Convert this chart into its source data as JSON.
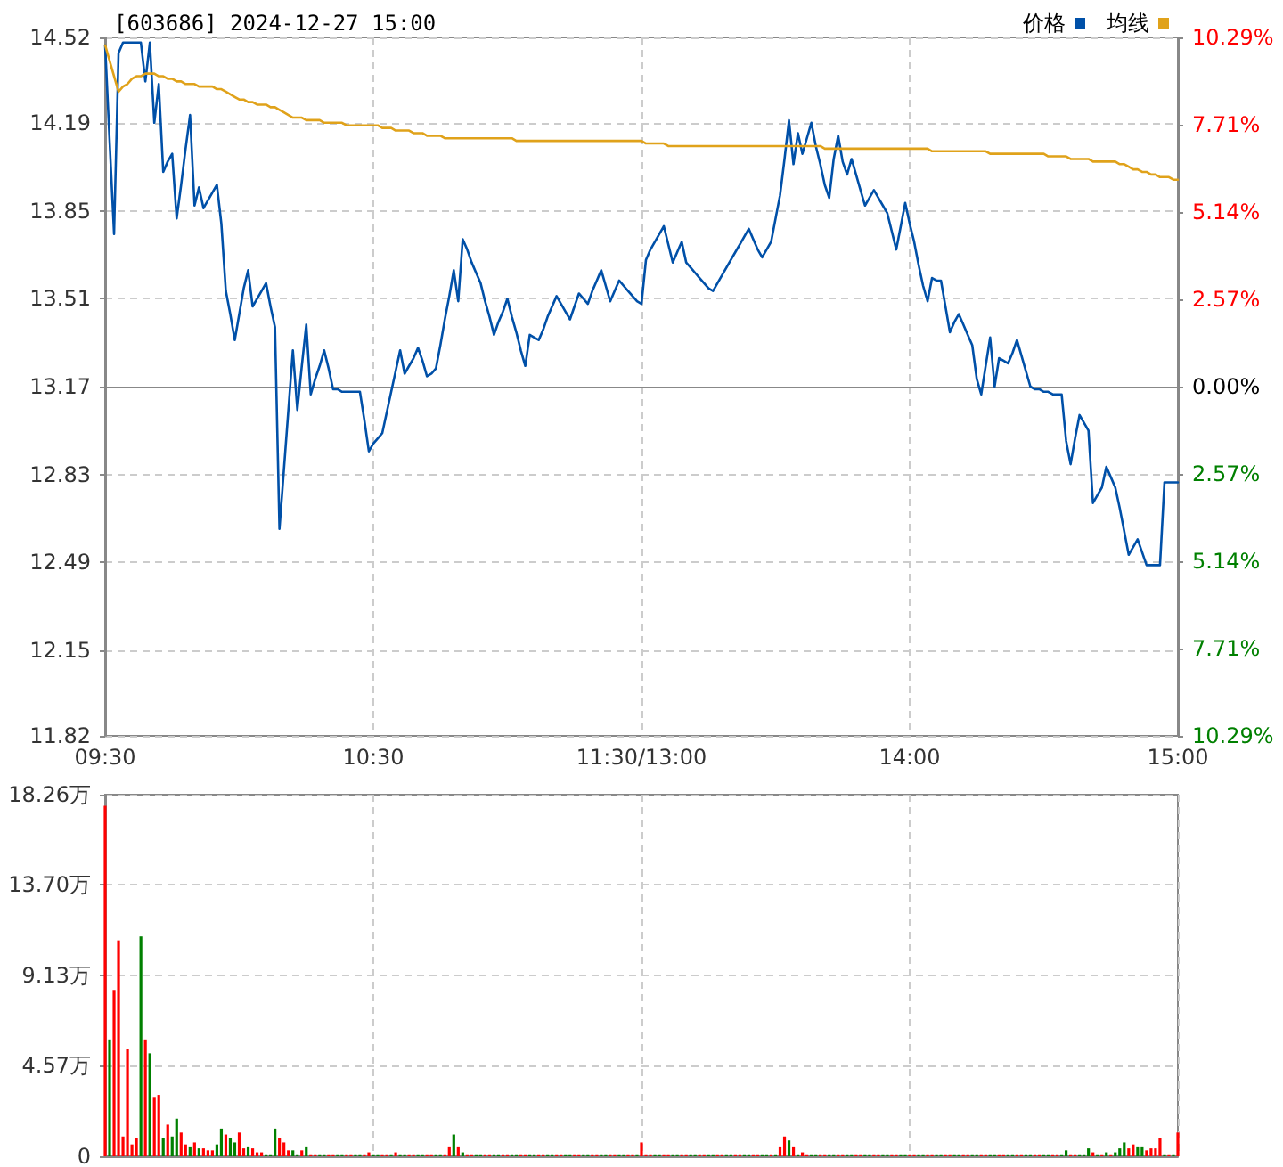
{
  "chart_data": [
    {
      "type": "line",
      "title": "[603686] 2024-12-27 15:00",
      "categories": [
        "09:30",
        null,
        null,
        null,
        null,
        null,
        null,
        null,
        null,
        null,
        null,
        null,
        null,
        null,
        null,
        null,
        null,
        null,
        null,
        null,
        null,
        null,
        null,
        null,
        null,
        null,
        null,
        null,
        null,
        null,
        null,
        null,
        null,
        null,
        null,
        null,
        null,
        null,
        null,
        null,
        null,
        null,
        null,
        null,
        null,
        null,
        null,
        null,
        null,
        null,
        null,
        null,
        null,
        null,
        null,
        null,
        null,
        null,
        null,
        null,
        "10:30",
        null,
        null,
        null,
        null,
        null,
        null,
        null,
        null,
        null,
        null,
        null,
        null,
        null,
        null,
        null,
        null,
        null,
        null,
        null,
        null,
        null,
        null,
        null,
        null,
        null,
        null,
        null,
        null,
        null,
        null,
        null,
        null,
        null,
        null,
        null,
        null,
        null,
        null,
        null,
        null,
        null,
        null,
        null,
        null,
        null,
        null,
        null,
        null,
        null,
        null,
        null,
        null,
        null,
        null,
        null,
        null,
        null,
        null,
        null,
        "11:30/13:00",
        null,
        null,
        null,
        null,
        null,
        null,
        null,
        null,
        null,
        null,
        null,
        null,
        null,
        null,
        null,
        null,
        null,
        null,
        null,
        null,
        null,
        null,
        null,
        null,
        null,
        null,
        null,
        null,
        null,
        null,
        null,
        null,
        null,
        null,
        null,
        null,
        null,
        null,
        null,
        null,
        null,
        null,
        null,
        null,
        null,
        null,
        null,
        null,
        null,
        null,
        null,
        null,
        null,
        null,
        null,
        null,
        null,
        null,
        null,
        "14:00",
        null,
        null,
        null,
        null,
        null,
        null,
        null,
        null,
        null,
        null,
        null,
        null,
        null,
        null,
        null,
        null,
        null,
        null,
        null,
        null,
        null,
        null,
        null,
        null,
        null,
        null,
        null,
        null,
        null,
        null,
        null,
        null,
        null,
        null,
        null,
        null,
        null,
        null,
        null,
        null,
        null,
        null,
        null,
        null,
        null,
        null,
        null,
        null,
        null,
        null,
        null,
        null,
        null,
        null,
        null,
        null,
        null,
        null,
        null,
        "15:00"
      ],
      "ylim": [
        11.82,
        14.52
      ],
      "yticks": [
        11.82,
        12.15,
        12.49,
        12.83,
        13.17,
        13.51,
        13.85,
        14.19,
        14.52
      ],
      "y2lim": [
        -10.29,
        10.29
      ],
      "y2ticks": [
        {
          "value": -10.29,
          "label": "10.29%"
        },
        {
          "value": -7.71,
          "label": "7.71%"
        },
        {
          "value": -5.14,
          "label": "5.14%"
        },
        {
          "value": -2.57,
          "label": "2.57%"
        },
        {
          "value": 0,
          "label": "0.00%"
        },
        {
          "value": 2.57,
          "label": "2.57%"
        },
        {
          "value": 5.14,
          "label": "5.14%"
        },
        {
          "value": 7.71,
          "label": "7.71%"
        },
        {
          "value": 10.29,
          "label": "10.29%"
        }
      ],
      "grid": true,
      "legend": "top right",
      "series": [
        {
          "name": "价格",
          "color": "#0050a8",
          "values": [
            14.49,
            14.12,
            13.76,
            14.46,
            14.5,
            14.5,
            14.5,
            14.5,
            14.5,
            14.35,
            14.5,
            14.19,
            14.34,
            14.0,
            14.04,
            14.07,
            13.82,
            13.95,
            14.09,
            14.22,
            13.87,
            13.94,
            13.86,
            13.89,
            13.92,
            13.95,
            13.8,
            13.54,
            13.45,
            13.35,
            13.45,
            13.55,
            13.62,
            13.48,
            13.51,
            13.54,
            13.57,
            13.48,
            13.4,
            12.62,
            12.85,
            13.08,
            13.31,
            13.08,
            13.25,
            13.41,
            13.14,
            13.2,
            13.25,
            13.31,
            13.24,
            13.16,
            13.16,
            13.15,
            13.15,
            13.15,
            13.15,
            13.15,
            13.04,
            12.92,
            12.95,
            12.97,
            12.99,
            13.07,
            13.15,
            13.23,
            13.31,
            13.22,
            13.25,
            13.28,
            13.32,
            13.27,
            13.21,
            13.22,
            13.24,
            13.33,
            13.43,
            13.52,
            13.62,
            13.5,
            13.74,
            13.7,
            13.65,
            13.61,
            13.57,
            13.5,
            13.44,
            13.37,
            13.42,
            13.46,
            13.51,
            13.44,
            13.38,
            13.31,
            13.25,
            13.37,
            13.36,
            13.35,
            13.39,
            13.44,
            13.48,
            13.52,
            13.49,
            13.46,
            13.43,
            13.48,
            13.53,
            13.51,
            13.49,
            13.54,
            13.58,
            13.62,
            13.56,
            13.5,
            13.54,
            13.58,
            13.56,
            13.54,
            13.52,
            13.5,
            13.49,
            13.66,
            13.7,
            13.73,
            13.76,
            13.79,
            13.72,
            13.65,
            13.69,
            13.73,
            13.65,
            13.63,
            13.61,
            13.59,
            13.57,
            13.55,
            13.54,
            13.57,
            13.6,
            13.63,
            13.66,
            13.69,
            13.72,
            13.75,
            13.78,
            13.74,
            13.7,
            13.67,
            13.7,
            13.73,
            13.82,
            13.91,
            14.05,
            14.2,
            14.03,
            14.15,
            14.07,
            14.13,
            14.19,
            14.1,
            14.03,
            13.95,
            13.9,
            14.05,
            14.14,
            14.04,
            13.99,
            14.05,
            13.99,
            13.93,
            13.87,
            13.9,
            13.93,
            13.9,
            13.87,
            13.84,
            13.77,
            13.7,
            13.79,
            13.88,
            13.8,
            13.73,
            13.64,
            13.56,
            13.5,
            13.59,
            13.58,
            13.58,
            13.48,
            13.38,
            13.42,
            13.45,
            13.41,
            13.37,
            13.33,
            13.2,
            13.14,
            13.25,
            13.36,
            13.17,
            13.28,
            13.27,
            13.26,
            13.3,
            13.35,
            13.29,
            13.23,
            13.17,
            13.16,
            13.16,
            13.15,
            13.15,
            13.14,
            13.14,
            13.14,
            12.96,
            12.87,
            12.97,
            13.06,
            13.03,
            13.0,
            12.72,
            12.75,
            12.78,
            12.86,
            12.82,
            12.78,
            12.7,
            12.61,
            12.52,
            12.55,
            12.58,
            12.53,
            12.48,
            12.48,
            12.48,
            12.48,
            12.8,
            12.8,
            12.8,
            12.8
          ]
        },
        {
          "name": "均线",
          "color": "#e0a21a",
          "values": [
            14.49,
            14.43,
            14.37,
            14.31,
            14.33,
            14.34,
            14.36,
            14.37,
            14.37,
            14.38,
            14.38,
            14.38,
            14.37,
            14.37,
            14.36,
            14.36,
            14.35,
            14.35,
            14.34,
            14.34,
            14.34,
            14.33,
            14.33,
            14.33,
            14.33,
            14.32,
            14.32,
            14.31,
            14.3,
            14.29,
            14.28,
            14.28,
            14.27,
            14.27,
            14.26,
            14.26,
            14.26,
            14.25,
            14.25,
            14.24,
            14.23,
            14.22,
            14.21,
            14.21,
            14.21,
            14.2,
            14.2,
            14.2,
            14.2,
            14.19,
            14.19,
            14.19,
            14.19,
            14.19,
            14.18,
            14.18,
            14.18,
            14.18,
            14.18,
            14.18,
            14.18,
            14.18,
            14.17,
            14.17,
            14.17,
            14.16,
            14.16,
            14.16,
            14.16,
            14.15,
            14.15,
            14.15,
            14.14,
            14.14,
            14.14,
            14.14,
            14.13,
            14.13,
            14.13,
            14.13,
            14.13,
            14.13,
            14.13,
            14.13,
            14.13,
            14.13,
            14.13,
            14.13,
            14.13,
            14.13,
            14.13,
            14.13,
            14.12,
            14.12,
            14.12,
            14.12,
            14.12,
            14.12,
            14.12,
            14.12,
            14.12,
            14.12,
            14.12,
            14.12,
            14.12,
            14.12,
            14.12,
            14.12,
            14.12,
            14.12,
            14.12,
            14.12,
            14.12,
            14.12,
            14.12,
            14.12,
            14.12,
            14.12,
            14.12,
            14.12,
            14.12,
            14.11,
            14.11,
            14.11,
            14.11,
            14.11,
            14.1,
            14.1,
            14.1,
            14.1,
            14.1,
            14.1,
            14.1,
            14.1,
            14.1,
            14.1,
            14.1,
            14.1,
            14.1,
            14.1,
            14.1,
            14.1,
            14.1,
            14.1,
            14.1,
            14.1,
            14.1,
            14.1,
            14.1,
            14.1,
            14.1,
            14.1,
            14.1,
            14.1,
            14.1,
            14.1,
            14.1,
            14.1,
            14.1,
            14.1,
            14.1,
            14.09,
            14.09,
            14.09,
            14.09,
            14.09,
            14.09,
            14.09,
            14.09,
            14.09,
            14.09,
            14.09,
            14.09,
            14.09,
            14.09,
            14.09,
            14.09,
            14.09,
            14.09,
            14.09,
            14.09,
            14.09,
            14.09,
            14.09,
            14.09,
            14.08,
            14.08,
            14.08,
            14.08,
            14.08,
            14.08,
            14.08,
            14.08,
            14.08,
            14.08,
            14.08,
            14.08,
            14.08,
            14.07,
            14.07,
            14.07,
            14.07,
            14.07,
            14.07,
            14.07,
            14.07,
            14.07,
            14.07,
            14.07,
            14.07,
            14.07,
            14.06,
            14.06,
            14.06,
            14.06,
            14.06,
            14.05,
            14.05,
            14.05,
            14.05,
            14.05,
            14.04,
            14.04,
            14.04,
            14.04,
            14.04,
            14.04,
            14.03,
            14.03,
            14.02,
            14.01,
            14.01,
            14.0,
            14.0,
            13.99,
            13.99,
            13.98,
            13.98,
            13.98,
            13.97,
            13.97
          ]
        }
      ]
    },
    {
      "type": "bar",
      "tick_labels": "y",
      "categories": [
        null,
        null,
        null,
        null,
        null,
        null,
        null,
        null,
        null,
        null,
        null,
        null,
        null,
        null,
        null,
        null,
        null,
        null,
        null,
        null,
        null,
        null,
        null,
        null,
        null,
        null,
        null,
        null,
        null,
        null,
        null,
        null,
        null,
        null,
        null,
        null,
        null,
        null,
        null,
        null,
        null,
        null,
        null,
        null,
        null,
        null,
        null,
        null,
        null,
        null,
        null,
        null,
        null,
        null,
        null,
        null,
        null,
        null,
        null,
        null,
        null,
        null,
        null,
        null,
        null,
        null,
        null,
        null,
        null,
        null,
        null,
        null,
        null,
        null,
        null,
        null,
        null,
        null,
        null,
        null,
        null,
        null,
        null,
        null,
        null,
        null,
        null,
        null,
        null,
        null,
        null,
        null,
        null,
        null,
        null,
        null,
        null,
        null,
        null,
        null,
        null,
        null,
        null,
        null,
        null,
        null,
        null,
        null,
        null,
        null,
        null,
        null,
        null,
        null,
        null,
        null,
        null,
        null,
        null,
        null,
        null,
        null,
        null,
        null,
        null,
        null,
        null,
        null,
        null,
        null,
        null,
        null,
        null,
        null,
        null,
        null,
        null,
        null,
        null,
        null,
        null,
        null,
        null,
        null,
        null,
        null,
        null,
        null,
        null,
        null,
        null,
        null,
        null,
        null,
        null,
        null,
        null,
        null,
        null,
        null,
        null,
        null,
        null,
        null,
        null,
        null,
        null,
        null,
        null,
        null,
        null,
        null,
        null,
        null,
        null,
        null,
        null,
        null,
        null,
        null,
        null,
        null,
        null,
        null,
        null,
        null,
        null,
        null,
        null,
        null,
        null,
        null,
        null,
        null,
        null,
        null,
        null,
        null,
        null,
        null,
        null,
        null,
        null,
        null,
        null,
        null,
        null,
        null,
        null,
        null,
        null,
        null,
        null,
        null,
        null,
        null,
        null,
        null,
        null,
        null,
        null,
        null,
        null,
        null,
        null,
        null,
        null,
        null,
        null,
        null,
        null,
        null,
        null,
        null,
        null,
        null,
        null,
        null,
        null,
        null,
        null
      ],
      "ylim": [
        0,
        18.26
      ],
      "yticks": [
        0,
        {
          "value": 4.57,
          "label": "4.57万"
        },
        {
          "value": 9.13,
          "label": "9.13万"
        },
        {
          "value": 13.7,
          "label": "13.70万"
        },
        {
          "value": 18.26,
          "label": "18.26万"
        }
      ],
      "grid": true,
      "values": [
        17.7,
        5.9,
        8.4,
        10.9,
        1.0,
        5.4,
        0.6,
        0.9,
        11.1,
        5.9,
        5.2,
        3.0,
        3.1,
        0.9,
        1.6,
        1.0,
        1.9,
        1.2,
        0.6,
        0.5,
        0.7,
        0.4,
        0.4,
        0.3,
        0.3,
        0.6,
        1.4,
        1.1,
        0.9,
        0.7,
        1.2,
        0.4,
        0.5,
        0.4,
        0.2,
        0.2,
        0.1,
        0.1,
        1.4,
        0.9,
        0.7,
        0.3,
        0.3,
        0.1,
        0.3,
        0.5,
        0.1,
        0.1,
        0.1,
        0.1,
        0.1,
        0.1,
        0.1,
        0.1,
        0.1,
        0.1,
        0.1,
        0.1,
        0.1,
        0.2,
        0.1,
        0.1,
        0.1,
        0.1,
        0.1,
        0.2,
        0.1,
        0.1,
        0.1,
        0.1,
        0.1,
        0.1,
        0.1,
        0.1,
        0.1,
        0.1,
        0.1,
        0.5,
        1.1,
        0.5,
        0.2,
        0.1,
        0.1,
        0.1,
        0.1,
        0.1,
        0.1,
        0.1,
        0.1,
        0.1,
        0.1,
        0.1,
        0.1,
        0.1,
        0.1,
        0.1,
        0.1,
        0.1,
        0.1,
        0.1,
        0.1,
        0.1,
        0.1,
        0.1,
        0.1,
        0.1,
        0.1,
        0.1,
        0.1,
        0.1,
        0.1,
        0.1,
        0.1,
        0.1,
        0.1,
        0.1,
        0.1,
        0.1,
        0.1,
        0.1,
        0.7,
        0.1,
        0.1,
        0.1,
        0.1,
        0.1,
        0.1,
        0.1,
        0.1,
        0.1,
        0.1,
        0.1,
        0.1,
        0.1,
        0.1,
        0.1,
        0.1,
        0.1,
        0.1,
        0.1,
        0.1,
        0.1,
        0.1,
        0.1,
        0.1,
        0.1,
        0.1,
        0.1,
        0.1,
        0.1,
        0.1,
        0.5,
        1.0,
        0.8,
        0.5,
        0.1,
        0.2,
        0.1,
        0.1,
        0.1,
        0.1,
        0.1,
        0.1,
        0.1,
        0.1,
        0.1,
        0.1,
        0.1,
        0.1,
        0.1,
        0.1,
        0.1,
        0.1,
        0.1,
        0.1,
        0.1,
        0.1,
        0.1,
        0.1,
        0.1,
        0.1,
        0.1,
        0.1,
        0.1,
        0.1,
        0.1,
        0.1,
        0.1,
        0.1,
        0.1,
        0.1,
        0.1,
        0.1,
        0.1,
        0.1,
        0.1,
        0.1,
        0.1,
        0.1,
        0.1,
        0.1,
        0.1,
        0.1,
        0.1,
        0.1,
        0.1,
        0.1,
        0.1,
        0.1,
        0.1,
        0.1,
        0.1,
        0.1,
        0.1,
        0.1,
        0.3,
        0.1,
        0.1,
        0.1,
        0.1,
        0.4,
        0.2,
        0.1,
        0.1,
        0.2,
        0.1,
        0.2,
        0.4,
        0.7,
        0.4,
        0.6,
        0.5,
        0.5,
        0.3,
        0.4,
        0.4,
        0.9,
        0.1,
        0.1,
        0.1,
        1.2
      ],
      "colors": [
        "#ff0000",
        "#008000",
        "#ff0000",
        "#ff0000",
        "#ff0000",
        "#ff0000",
        "#ff0000",
        "#ff0000",
        "#008000",
        "#ff0000",
        "#008000",
        "#ff0000",
        "#ff0000",
        "#008000",
        "#ff0000",
        "#008000",
        "#008000",
        "#ff0000",
        "#ff0000",
        "#008000",
        "#ff0000",
        "#008000",
        "#ff0000",
        "#ff0000",
        "#ff0000",
        "#008000",
        "#008000",
        "#ff0000",
        "#008000",
        "#008000",
        "#ff0000",
        "#ff0000",
        "#008000",
        "#ff0000",
        "#ff0000",
        "#ff0000",
        "#008000",
        "#008000",
        "#008000",
        "#ff0000",
        "#ff0000",
        "#ff0000",
        "#008000",
        "#008000",
        "#ff0000",
        "#008000",
        "#ff0000",
        "#ff0000",
        "#008000",
        "#008000",
        "#ff0000",
        "#ff0000",
        "#008000",
        "#008000",
        "#ff0000",
        "#ff0000",
        "#008000",
        "#008000",
        "#ff0000",
        "#ff0000",
        "#008000",
        "#008000",
        "#ff0000",
        "#ff0000",
        "#008000",
        "#ff0000",
        "#008000",
        "#008000",
        "#ff0000",
        "#ff0000",
        "#008000",
        "#008000",
        "#ff0000",
        "#ff0000",
        "#008000",
        "#008000",
        "#ff0000",
        "#ff0000",
        "#008000",
        "#ff0000",
        "#008000",
        "#ff0000",
        "#ff0000",
        "#008000",
        "#008000",
        "#ff0000",
        "#ff0000",
        "#008000",
        "#008000",
        "#ff0000",
        "#ff0000",
        "#008000",
        "#008000",
        "#ff0000",
        "#ff0000",
        "#008000",
        "#008000",
        "#ff0000",
        "#ff0000",
        "#008000",
        "#008000",
        "#ff0000",
        "#ff0000",
        "#008000",
        "#008000",
        "#ff0000",
        "#ff0000",
        "#008000",
        "#008000",
        "#ff0000",
        "#ff0000",
        "#008000",
        "#008000",
        "#ff0000",
        "#ff0000",
        "#008000",
        "#008000",
        "#ff0000",
        "#ff0000",
        "#008000",
        "#ff0000",
        "#ff0000",
        "#ff0000",
        "#008000",
        "#008000",
        "#ff0000",
        "#ff0000",
        "#008000",
        "#008000",
        "#ff0000",
        "#ff0000",
        "#008000",
        "#008000",
        "#ff0000",
        "#ff0000",
        "#008000",
        "#008000",
        "#ff0000",
        "#ff0000",
        "#008000",
        "#008000",
        "#ff0000",
        "#ff0000",
        "#008000",
        "#008000",
        "#ff0000",
        "#ff0000",
        "#008000",
        "#008000",
        "#ff0000",
        "#008000",
        "#ff0000",
        "#ff0000",
        "#008000",
        "#ff0000",
        "#008000",
        "#ff0000",
        "#ff0000",
        "#008000",
        "#008000",
        "#ff0000",
        "#ff0000",
        "#008000",
        "#008000",
        "#ff0000",
        "#ff0000",
        "#008000",
        "#008000",
        "#ff0000",
        "#ff0000",
        "#008000",
        "#008000",
        "#ff0000",
        "#ff0000",
        "#008000",
        "#008000",
        "#ff0000",
        "#ff0000",
        "#008000",
        "#008000",
        "#ff0000",
        "#ff0000",
        "#008000",
        "#008000",
        "#ff0000",
        "#ff0000",
        "#008000",
        "#008000",
        "#ff0000",
        "#ff0000",
        "#008000",
        "#008000",
        "#ff0000",
        "#ff0000",
        "#008000",
        "#008000",
        "#ff0000",
        "#ff0000",
        "#008000",
        "#008000",
        "#ff0000",
        "#ff0000",
        "#008000",
        "#008000",
        "#ff0000",
        "#ff0000",
        "#008000",
        "#008000",
        "#ff0000",
        "#ff0000",
        "#008000",
        "#008000",
        "#ff0000",
        "#ff0000",
        "#008000",
        "#008000",
        "#ff0000",
        "#ff0000",
        "#008000",
        "#008000",
        "#008000",
        "#ff0000",
        "#008000",
        "#ff0000",
        "#008000",
        "#ff0000",
        "#008000",
        "#008000",
        "#008000",
        "#ff0000",
        "#ff0000",
        "#008000",
        "#008000",
        "#ff0000",
        "#ff0000",
        "#ff0000",
        "#ff0000",
        "#008000",
        "#ff0000",
        "#008000",
        "#ff0000"
      ]
    }
  ]
}
